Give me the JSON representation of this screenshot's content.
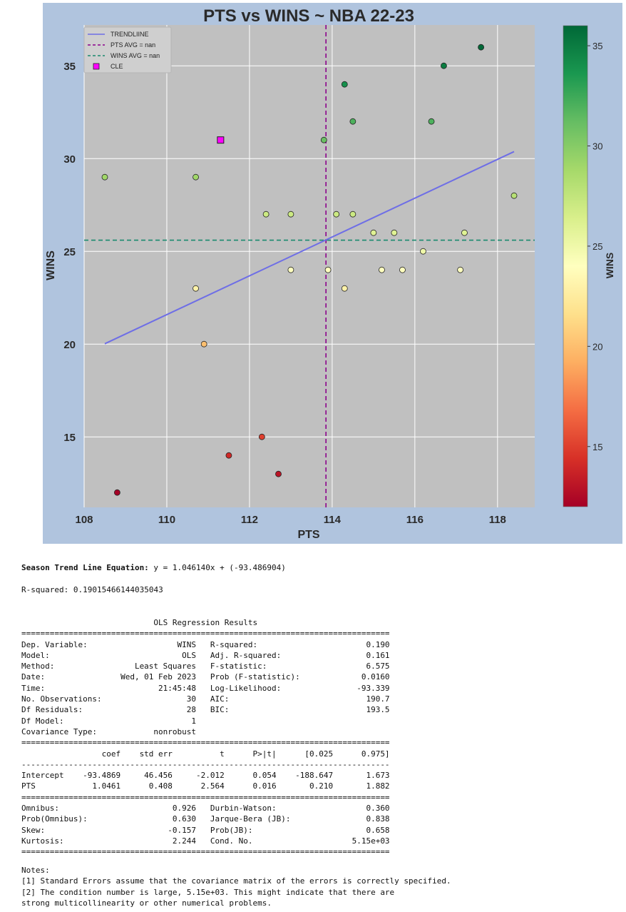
{
  "chart_data": {
    "type": "scatter",
    "title": "PTS vs WINS ~ NBA 22-23",
    "xlabel": "PTS",
    "ylabel": "WINS",
    "xlim": [
      108,
      118.9
    ],
    "ylim": [
      11.2,
      37.2
    ],
    "x_ticks": [
      108,
      110,
      112,
      114,
      116,
      118
    ],
    "y_ticks": [
      15,
      20,
      25,
      30,
      35
    ],
    "grid": true,
    "legend_position": "top-left",
    "legend": [
      "TRENDLIINE",
      "PTS AVG = nan",
      "WINS AVG = nan",
      "CLE"
    ],
    "colorbar": {
      "label": "WINS",
      "min": 12,
      "max": 36,
      "ticks": [
        15,
        20,
        25,
        30,
        35
      ],
      "colormap": "RdYlGn"
    },
    "points": [
      {
        "x": 108.5,
        "y": 29
      },
      {
        "x": 108.8,
        "y": 12
      },
      {
        "x": 110.7,
        "y": 29
      },
      {
        "x": 110.7,
        "y": 23
      },
      {
        "x": 110.9,
        "y": 20
      },
      {
        "x": 111.5,
        "y": 14
      },
      {
        "x": 112.3,
        "y": 15
      },
      {
        "x": 112.4,
        "y": 27
      },
      {
        "x": 112.7,
        "y": 13
      },
      {
        "x": 113.0,
        "y": 27
      },
      {
        "x": 113.0,
        "y": 24
      },
      {
        "x": 113.8,
        "y": 31
      },
      {
        "x": 113.9,
        "y": 24
      },
      {
        "x": 114.1,
        "y": 27
      },
      {
        "x": 114.3,
        "y": 34
      },
      {
        "x": 114.3,
        "y": 23
      },
      {
        "x": 114.5,
        "y": 32
      },
      {
        "x": 114.5,
        "y": 27
      },
      {
        "x": 115.0,
        "y": 26
      },
      {
        "x": 115.2,
        "y": 24
      },
      {
        "x": 115.5,
        "y": 26
      },
      {
        "x": 115.7,
        "y": 24
      },
      {
        "x": 116.2,
        "y": 25
      },
      {
        "x": 116.4,
        "y": 32
      },
      {
        "x": 116.7,
        "y": 35
      },
      {
        "x": 117.1,
        "y": 24
      },
      {
        "x": 117.2,
        "y": 26
      },
      {
        "x": 117.6,
        "y": 36
      },
      {
        "x": 118.4,
        "y": 28
      }
    ],
    "highlight": {
      "name": "CLE",
      "x": 111.3,
      "y": 31,
      "color": "#ff00ff"
    },
    "trendline": {
      "x": [
        108.5,
        118.4
      ],
      "slope": 1.04614,
      "intercept": -93.486904,
      "color": "#6e6ee6"
    },
    "pts_avg_line": {
      "x": 113.85,
      "color": "#8b008b"
    },
    "wins_avg_line": {
      "y": 25.6,
      "color": "#1a8a6e"
    },
    "plot_bg": "#c0c0c0",
    "figure_bg": "#b0c4de"
  },
  "equation_label": "Season Trend Line Equation:",
  "equation_value": " y = 1.046140x + (-93.486904)",
  "r_squared_label": "R-squared:",
  "r_squared_value": " 0.19015466144035043",
  "ols_summary": "                            OLS Regression Results                            \n==============================================================================\nDep. Variable:                   WINS   R-squared:                       0.190\nModel:                            OLS   Adj. R-squared:                  0.161\nMethod:                 Least Squares   F-statistic:                     6.575\nDate:                Wed, 01 Feb 2023   Prob (F-statistic):             0.0160\nTime:                        21:45:48   Log-Likelihood:                -93.339\nNo. Observations:                  30   AIC:                             190.7\nDf Residuals:                      28   BIC:                             193.5\nDf Model:                           1                                         \nCovariance Type:            nonrobust                                         \n==============================================================================\n                 coef    std err          t      P>|t|      [0.025      0.975]\n------------------------------------------------------------------------------\nIntercept    -93.4869     46.456     -2.012      0.054    -188.647       1.673\nPTS            1.0461      0.408      2.564      0.016       0.210       1.882\n==============================================================================\nOmnibus:                        0.926   Durbin-Watson:                   0.360\nProb(Omnibus):                  0.630   Jarque-Bera (JB):                0.838\nSkew:                          -0.157   Prob(JB):                        0.658\nKurtosis:                       2.244   Cond. No.                     5.15e+03\n==============================================================================",
  "notes": "Notes:\n[1] Standard Errors assume that the covariance matrix of the errors is correctly specified.\n[2] The condition number is large, 5.15e+03. This might indicate that there are\nstrong multicollinearity or other numerical problems."
}
